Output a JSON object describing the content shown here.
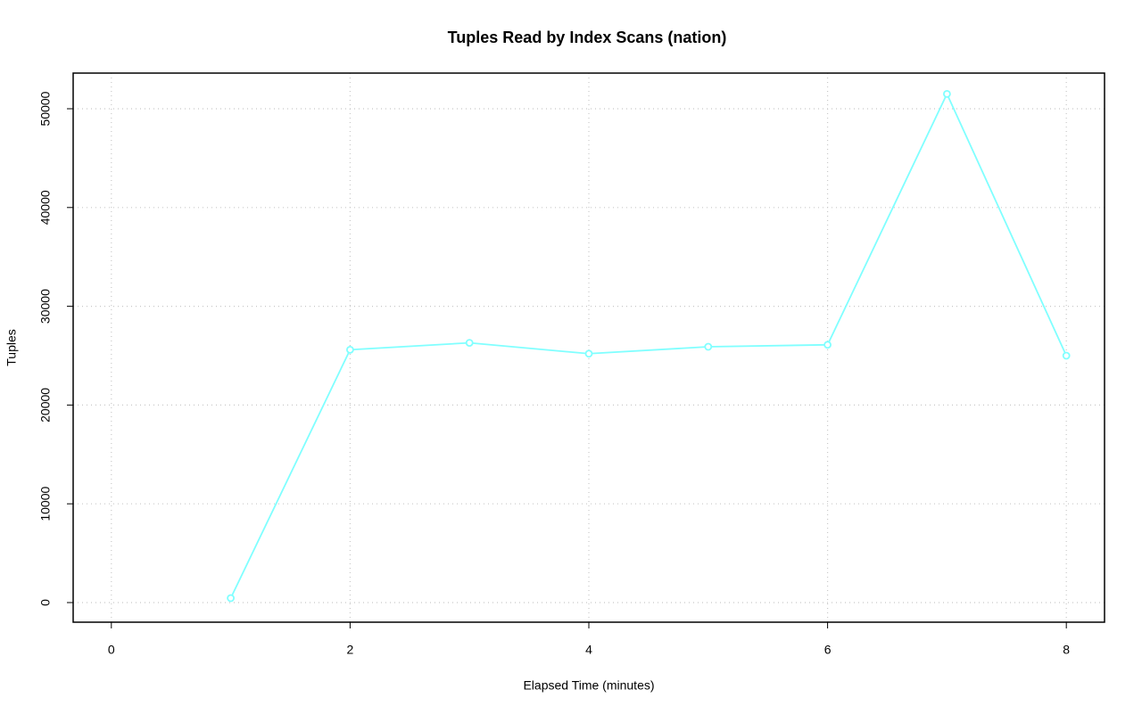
{
  "chart_data": {
    "type": "line",
    "title": "Tuples Read by Index Scans (nation)",
    "x_label": "Elapsed Time (minutes)",
    "y_label": "Tuples",
    "x": [
      1,
      2,
      3,
      4,
      5,
      6,
      7,
      8
    ],
    "series": [
      {
        "name": "Tuples",
        "color": "#80ffff",
        "values": [
          450,
          25600,
          26300,
          25200,
          25900,
          26100,
          51500,
          25000
        ]
      }
    ],
    "xlim": [
      -0.32,
      8.32
    ],
    "xticks": [
      0,
      2,
      4,
      6,
      8
    ],
    "ylim": [
      -1986,
      53610
    ],
    "yticks": [
      0,
      10000,
      20000,
      30000,
      40000,
      50000
    ],
    "grid": true
  }
}
